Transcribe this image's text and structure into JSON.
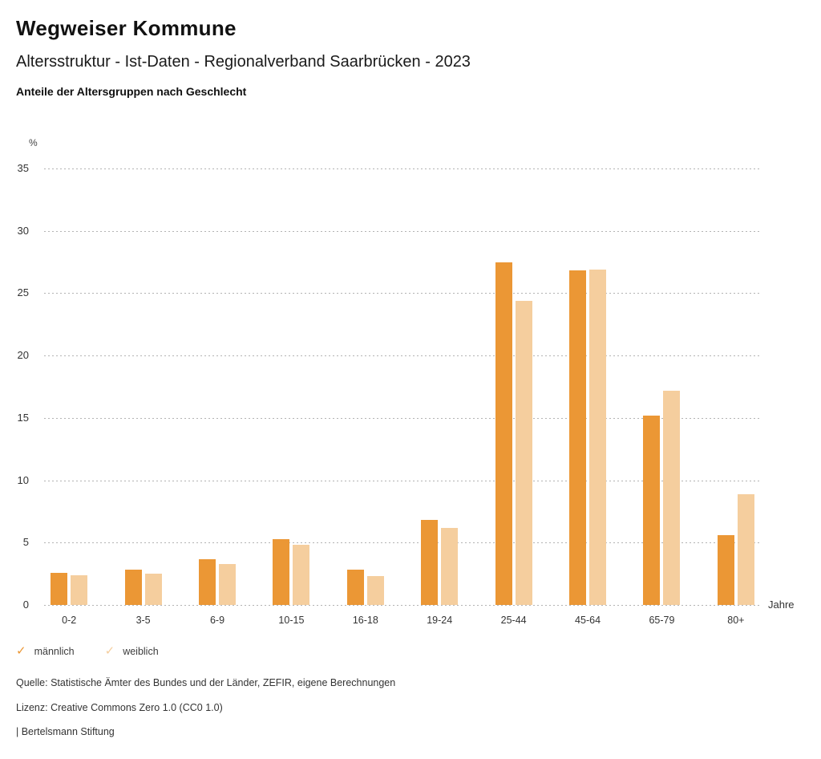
{
  "header": {
    "title": "Wegweiser Kommune",
    "subtitle": "Altersstruktur - Ist-Daten - Regionalverband Saarbrücken - 2023",
    "chart_heading": "Anteile der Altersgruppen nach Geschlecht"
  },
  "chart_data": {
    "type": "bar",
    "title": "Anteile der Altersgruppen nach Geschlecht",
    "unit_label": "%",
    "x_unit_label": "Jahre",
    "categories": [
      "0-2",
      "3-5",
      "6-9",
      "10-15",
      "16-18",
      "19-24",
      "25-44",
      "45-64",
      "65-79",
      "80+"
    ],
    "series": [
      {
        "name": "männlich",
        "color": "#EB9735",
        "values": [
          2.6,
          2.8,
          3.7,
          5.3,
          2.8,
          6.8,
          27.5,
          26.8,
          15.2,
          5.6
        ]
      },
      {
        "name": "weiblich",
        "color": "#F5CE9E",
        "values": [
          2.4,
          2.5,
          3.3,
          4.8,
          2.3,
          6.2,
          24.4,
          26.9,
          17.2,
          8.9
        ]
      }
    ],
    "ylim": [
      0,
      35
    ],
    "yticks": [
      35,
      30,
      25,
      20,
      15,
      10,
      5,
      0
    ],
    "grid": "horizontal-dotted",
    "legend_position": "bottom-left",
    "grid_color": "#b3b3b3"
  },
  "legend": {
    "check_glyph": "✓",
    "items": [
      {
        "label": "männlich",
        "color": "#EB9735"
      },
      {
        "label": "weiblich",
        "color": "#F5CE9E"
      }
    ]
  },
  "footer": {
    "source": "Quelle: Statistische Ämter des Bundes und der Länder, ZEFIR, eigene Berechnungen",
    "license": "Lizenz: Creative Commons Zero 1.0 (CC0 1.0)",
    "attribution": "| Bertelsmann Stiftung"
  }
}
